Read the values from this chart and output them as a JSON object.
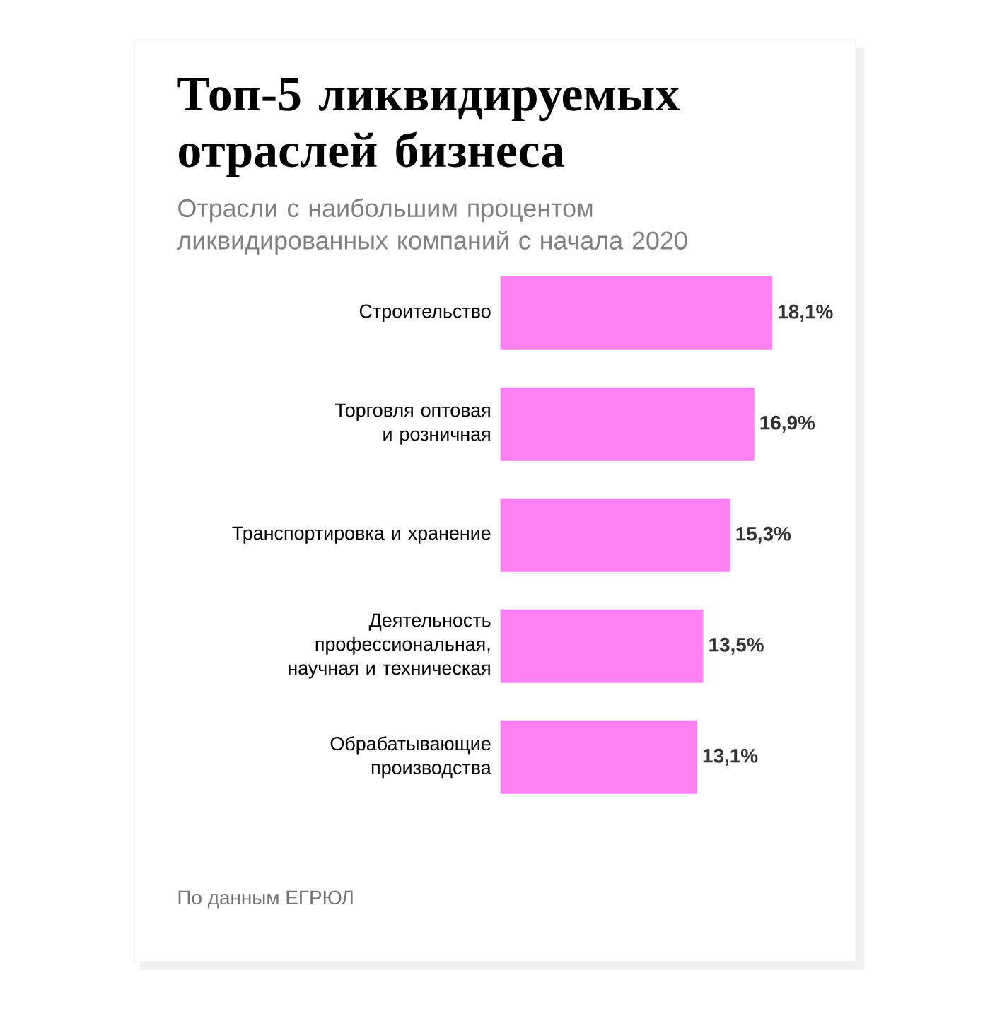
{
  "chart_data": {
    "type": "bar",
    "orientation": "horizontal",
    "title": "Топ-5 ликвидируемых отраслей бизнеса",
    "subtitle": "Отрасли с наибольшим процентом ликвидированных компаний с начала 2020",
    "categories": [
      "Строительство",
      "Торговля оптовая и розничная",
      "Транспортировка и хранение",
      "Деятельность профессиональная, научная и техническая",
      "Обрабатывающие производства"
    ],
    "values": [
      18.1,
      16.9,
      15.3,
      13.5,
      13.1
    ],
    "value_labels": [
      "18,1%",
      "16,9%",
      "15,3%",
      "13,5%",
      "13,1%"
    ],
    "color": "#ff80f2",
    "annotations": [
      "По данным ЕГРЮЛ"
    ]
  }
}
